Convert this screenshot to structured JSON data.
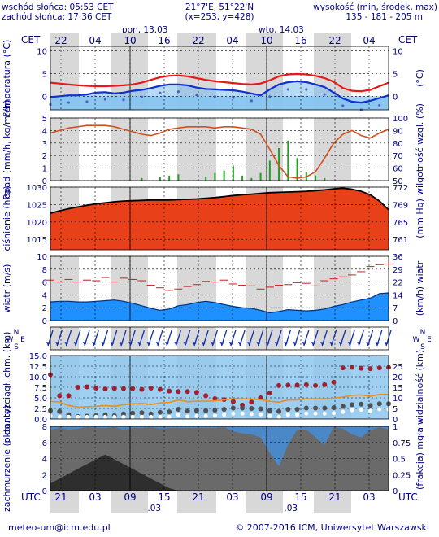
{
  "header": {
    "sunrise": "wschód słońca: 05:53 CET",
    "sunset": "zachód słońca: 17:36 CET",
    "coords": "21°7'E, 51°22'N",
    "grid": "(x=253, y=428)",
    "elev_title": "wysokość (min, środek, max)",
    "elev_values": "135 - 181 - 205 m"
  },
  "axis_top": {
    "tz_left": "CET",
    "tz_right": "CET",
    "ticks": [
      "22",
      "04",
      "10",
      "16",
      "22",
      "04",
      "10",
      "16",
      "22",
      "04"
    ],
    "day1": "pon, 13.03",
    "day2": "wto, 14.03"
  },
  "axis_bottom": {
    "tz_left": "UTC",
    "tz_right": "UTC",
    "ticks": [
      "21",
      "03",
      "09",
      "15",
      "21",
      "03",
      "09",
      "15",
      "21",
      "03"
    ],
    "day1": "13.03",
    "day2": "14.03"
  },
  "footer": {
    "email": "meteo-um@icm.edu.pl",
    "copyright": "© 2007-2016 ICM, Uniwersytet Warszawski"
  },
  "colors": {
    "line_red": "#e81818",
    "line_blue": "#1030d0",
    "pressure_fill": "#e84018",
    "humidity": "#d05020",
    "wind_fill": "#1e90ff",
    "night": "#d8d8d8"
  },
  "chart_data": [
    {
      "type": "line",
      "ylabel": "temperatura (°C)",
      "ylabel_right": "(°C)",
      "ylim": [
        -3,
        11
      ],
      "yticks": [
        0,
        5,
        10
      ],
      "series": [
        {
          "values": [
            3.0,
            2.8,
            2.6,
            2.4,
            2.3,
            2.2,
            2.2,
            2.3,
            2.4,
            2.6,
            3.0,
            3.6,
            4.2,
            4.5,
            4.6,
            4.4,
            4.0,
            3.6,
            3.3,
            3.1,
            2.9,
            2.7,
            2.6,
            2.8,
            3.5,
            4.4,
            4.8,
            4.9,
            4.8,
            4.5,
            4.0,
            3.2,
            1.8,
            1.2,
            1.1,
            1.4,
            2.2,
            3.0
          ]
        },
        {
          "values": [
            -0.2,
            0.0,
            0.2,
            0.2,
            0.4,
            0.8,
            0.9,
            0.6,
            0.8,
            1.2,
            1.4,
            1.8,
            2.3,
            2.6,
            2.6,
            2.4,
            1.9,
            1.6,
            1.5,
            1.4,
            1.3,
            1.0,
            0.6,
            0.2,
            1.5,
            2.6,
            3.1,
            3.3,
            3.1,
            2.6,
            2.0,
            0.8,
            -0.5,
            -1.2,
            -1.4,
            -1.0,
            -0.4,
            0.2
          ]
        }
      ]
    },
    {
      "type": "bar",
      "ylabel": "opad (mm/h, kg/m²/h)",
      "ylabel_right": "wilgotność wzgl. (%)",
      "ylim": [
        0,
        5
      ],
      "yticks": [
        0,
        1,
        2,
        3,
        4,
        5
      ],
      "ylim_right": [
        50,
        100
      ],
      "yticks_right": [
        50,
        60,
        70,
        80,
        90,
        100
      ],
      "series": [
        {
          "values": [
            0,
            0,
            0,
            0,
            0,
            0,
            0,
            0,
            0,
            0,
            0.2,
            0,
            0.3,
            0.4,
            0.5,
            0,
            0,
            0.3,
            0.6,
            0.8,
            1.2,
            0.4,
            0.2,
            0.6,
            1.6,
            2.6,
            3.2,
            1.8,
            0.7,
            0.4,
            0.2,
            0,
            0,
            0,
            0,
            0,
            0,
            0
          ]
        },
        {
          "values": [
            88,
            90,
            92,
            93,
            94,
            94,
            94,
            93,
            91,
            89,
            87,
            86,
            88,
            91,
            92,
            93,
            93,
            93,
            92,
            93,
            93,
            92,
            91,
            87,
            75,
            62,
            53,
            52,
            53,
            57,
            68,
            80,
            87,
            90,
            86,
            84,
            88,
            91
          ]
        }
      ]
    },
    {
      "type": "area",
      "ylabel": "ciśnienie (hPa)",
      "ylabel_right": "(mm Hg)",
      "ylim": [
        1012,
        1030
      ],
      "yticks": [
        1015,
        1020,
        1025,
        1030
      ],
      "yticks_right": [
        "761",
        "765",
        "769",
        "772"
      ],
      "values": [
        1022.5,
        1023.2,
        1023.8,
        1024.3,
        1024.8,
        1025.2,
        1025.5,
        1025.8,
        1026.0,
        1026.1,
        1026.2,
        1026.3,
        1026.3,
        1026.3,
        1026.4,
        1026.5,
        1026.6,
        1026.8,
        1027.0,
        1027.3,
        1027.6,
        1027.8,
        1028.0,
        1028.2,
        1028.4,
        1028.5,
        1028.6,
        1028.7,
        1028.8,
        1029.0,
        1029.2,
        1029.5,
        1029.7,
        1029.4,
        1028.8,
        1027.8,
        1026.0,
        1023.5
      ]
    },
    {
      "type": "area",
      "ylabel": "wiatr (m/s)",
      "ylabel_right": "(km/h) wiatr",
      "ylim": [
        0,
        10
      ],
      "yticks": [
        0,
        2,
        4,
        6,
        8,
        10
      ],
      "yticks_right": [
        "0",
        "7",
        "14",
        "22",
        "29",
        "36"
      ],
      "series": [
        {
          "values": [
            2.9,
            3.0,
            3.0,
            2.9,
            2.9,
            3.0,
            3.1,
            3.2,
            3.0,
            2.7,
            2.3,
            1.9,
            1.6,
            1.8,
            2.3,
            2.5,
            2.8,
            3.0,
            2.8,
            2.5,
            2.2,
            2.0,
            1.9,
            1.6,
            1.2,
            1.4,
            1.7,
            1.6,
            1.5,
            1.6,
            1.8,
            2.2,
            2.5,
            2.9,
            3.2,
            3.5,
            4.2,
            4.3
          ]
        },
        {
          "values": [
            6.3,
            6.0,
            6.4,
            6.0,
            6.3,
            6.2,
            6.7,
            6.0,
            6.6,
            6.4,
            6.2,
            5.5,
            5.1,
            4.7,
            4.9,
            5.3,
            5.6,
            6.1,
            6.0,
            6.3,
            5.7,
            5.5,
            5.4,
            4.9,
            5.2,
            5.5,
            5.6,
            5.9,
            5.8,
            5.4,
            6.2,
            6.5,
            6.8,
            7.1,
            7.6,
            8.4,
            8.7,
            8.8
          ]
        }
      ]
    },
    {
      "type": "scatter",
      "ylabel": "pion. rozciągł. chm. (km)",
      "ylabel_right": "widzialność (km)",
      "ylim": [
        0,
        15
      ],
      "yticks": [
        "0.0",
        "2.5",
        "5.0",
        "7.5",
        "10.0",
        "12.5",
        "15.0"
      ],
      "yticks_right": [
        "0",
        "5",
        "10",
        "15",
        "20",
        "25"
      ],
      "series": [
        {
          "values": [
            10.5,
            5.5,
            5.5,
            7.5,
            7.6,
            7.3,
            7.1,
            7.2,
            7.2,
            7.2,
            7.0,
            7.3,
            7.0,
            6.6,
            6.5,
            6.5,
            6.3,
            5.5,
            4.8,
            4.6,
            4.1,
            3.3,
            4.0,
            5.0,
            6.1,
            7.9,
            8.0,
            8.0,
            8.1,
            7.9,
            8.1,
            8.7,
            12.1,
            12.2,
            12.0,
            11.9,
            12.1,
            12.2
          ]
        },
        {
          "values": [
            4.2,
            4.0,
            3.2,
            2.8,
            2.9,
            3.0,
            3.2,
            3.0,
            3.4,
            3.6,
            3.7,
            3.4,
            3.8,
            3.9,
            4.5,
            4.1,
            4.2,
            4.2,
            4.3,
            4.5,
            4.8,
            4.8,
            4.7,
            4.6,
            4.2,
            4.0,
            4.5,
            4.5,
            4.8,
            4.8,
            4.8,
            4.9,
            5.2,
            5.6,
            5.7,
            5.4,
            5.8,
            5.8
          ]
        }
      ]
    },
    {
      "type": "area",
      "ylabel": "zachmurzenie (oktanty)",
      "ylabel_right": "(frakcja) mgła",
      "ylim": [
        0,
        8
      ],
      "yticks": [
        0,
        2,
        4,
        6,
        8
      ],
      "ylim_right": [
        0,
        1
      ],
      "yticks_right": [
        "0",
        "0.25",
        "0.5",
        "0.75",
        "1"
      ],
      "values": [
        7.6,
        7.8,
        7.6,
        7.7,
        7.9,
        7.8,
        7.8,
        7.9,
        7.6,
        7.8,
        7.8,
        7.9,
        7.7,
        7.8,
        7.8,
        7.8,
        7.8,
        7.8,
        7.8,
        7.9,
        7.4,
        7.1,
        7.0,
        6.6,
        4.7,
        3.0,
        5.7,
        7.6,
        7.6,
        6.6,
        5.7,
        7.9,
        7.7,
        7.0,
        6.6,
        7.5,
        7.9,
        7.6
      ]
    }
  ]
}
